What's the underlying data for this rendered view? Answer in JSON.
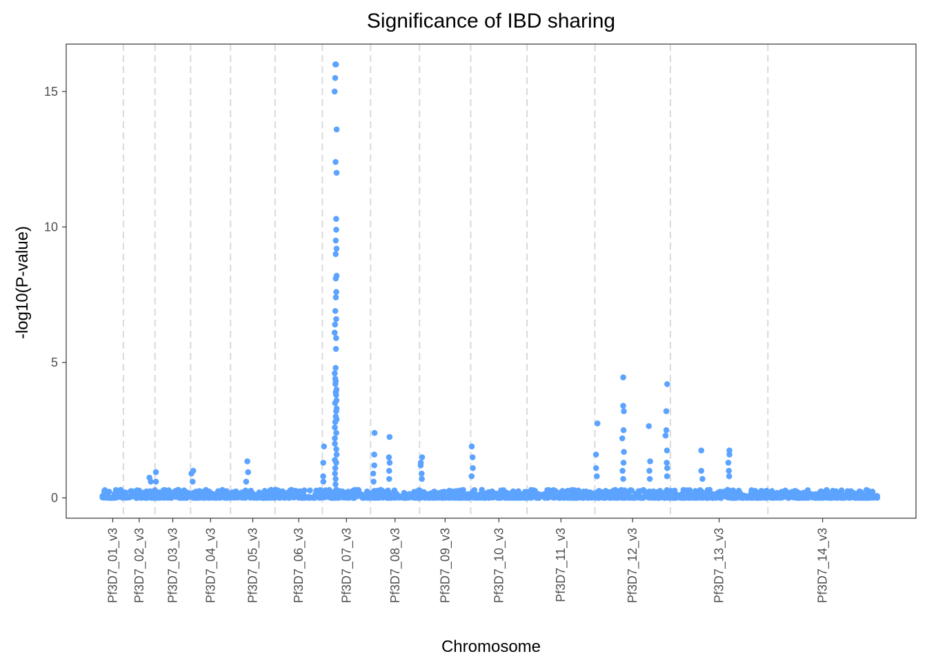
{
  "chart_data": {
    "type": "scatter",
    "title": "Significance of IBD sharing",
    "xlabel": "Chromosome",
    "ylabel": "-log10(P-value)",
    "ylim": [
      -0.75,
      16.75
    ],
    "yticks": [
      0,
      5,
      10,
      15
    ],
    "grid": false,
    "point_color": "#5BA3FF",
    "boundary_color": "#d9d9d9",
    "categories": [
      "Pf3D7_01_v3",
      "Pf3D7_02_v3",
      "Pf3D7_03_v3",
      "Pf3D7_04_v3",
      "Pf3D7_05_v3",
      "Pf3D7_06_v3",
      "Pf3D7_07_v3",
      "Pf3D7_08_v3",
      "Pf3D7_09_v3",
      "Pf3D7_10_v3",
      "Pf3D7_11_v3",
      "Pf3D7_12_v3",
      "Pf3D7_13_v3",
      "Pf3D7_14_v3"
    ],
    "chromosome_length_mb": [
      0.64,
      0.95,
      1.07,
      1.2,
      1.34,
      1.42,
      1.45,
      1.47,
      1.54,
      1.69,
      2.04,
      2.27,
      2.93,
      3.29
    ],
    "peaks_mb": [
      {
        "chr": "Pf3D7_07_v3",
        "pos": 0.4,
        "values": [
          16.0,
          16.0,
          16.0,
          15.5,
          15.0,
          13.6,
          12.4,
          12.0,
          10.3,
          9.9,
          9.5,
          9.2,
          9.0,
          8.2,
          8.1,
          7.6,
          7.4,
          6.9,
          6.6,
          6.4,
          6.1,
          5.9,
          5.5,
          4.8,
          4.6,
          4.4,
          4.3,
          4.2,
          4.0,
          3.9,
          3.8,
          3.6,
          3.5,
          3.3,
          3.2,
          3.0,
          2.9,
          2.8,
          2.6,
          2.4,
          2.2,
          2.0,
          1.8,
          1.6,
          1.4,
          1.3,
          1.1,
          0.9,
          0.7,
          0.5,
          0.3
        ]
      },
      {
        "chr": "Pf3D7_07_v3",
        "pos": 0.05,
        "values": [
          1.9,
          1.3,
          0.8,
          0.6
        ]
      },
      {
        "chr": "Pf3D7_08_v3",
        "pos": 0.1,
        "values": [
          2.4,
          1.6,
          1.2,
          0.9,
          0.6
        ]
      },
      {
        "chr": "Pf3D7_08_v3",
        "pos": 0.55,
        "values": [
          2.25,
          1.5,
          1.3,
          1.0,
          0.7
        ]
      },
      {
        "chr": "Pf3D7_09_v3",
        "pos": 0.05,
        "values": [
          1.5,
          1.3,
          1.2,
          0.9,
          0.7
        ]
      },
      {
        "chr": "Pf3D7_10_v3",
        "pos": 0.05,
        "values": [
          1.9,
          1.5,
          1.1,
          0.8
        ]
      },
      {
        "chr": "Pf3D7_12_v3",
        "pos": 0.05,
        "values": [
          2.75,
          1.6,
          1.1,
          0.8
        ]
      },
      {
        "chr": "Pf3D7_12_v3",
        "pos": 0.85,
        "values": [
          4.45,
          3.4,
          3.2,
          2.5,
          2.2,
          1.7,
          1.3,
          1.0,
          0.7
        ]
      },
      {
        "chr": "Pf3D7_12_v3",
        "pos": 1.65,
        "values": [
          2.65,
          1.35,
          1.0,
          0.7
        ]
      },
      {
        "chr": "Pf3D7_12_v3",
        "pos": 2.15,
        "values": [
          4.2,
          3.2,
          2.5,
          2.3,
          1.75,
          1.3,
          1.1,
          0.8
        ]
      },
      {
        "chr": "Pf3D7_13_v3",
        "pos": 0.95,
        "values": [
          1.75,
          1.0,
          0.7
        ]
      },
      {
        "chr": "Pf3D7_13_v3",
        "pos": 1.75,
        "values": [
          1.75,
          1.6,
          1.3,
          1.0,
          0.8
        ]
      },
      {
        "chr": "Pf3D7_05_v3",
        "pos": 0.5,
        "values": [
          1.35,
          0.95,
          0.6
        ]
      },
      {
        "chr": "Pf3D7_04_v3",
        "pos": 0.05,
        "values": [
          1.0,
          0.9,
          0.6
        ]
      },
      {
        "chr": "Pf3D7_03_v3",
        "pos": 0.05,
        "values": [
          0.95,
          0.6
        ]
      },
      {
        "chr": "Pf3D7_02_v3",
        "pos": 0.8,
        "values": [
          0.75,
          0.6
        ]
      }
    ],
    "baseline_range": [
      0.0,
      0.3
    ]
  }
}
